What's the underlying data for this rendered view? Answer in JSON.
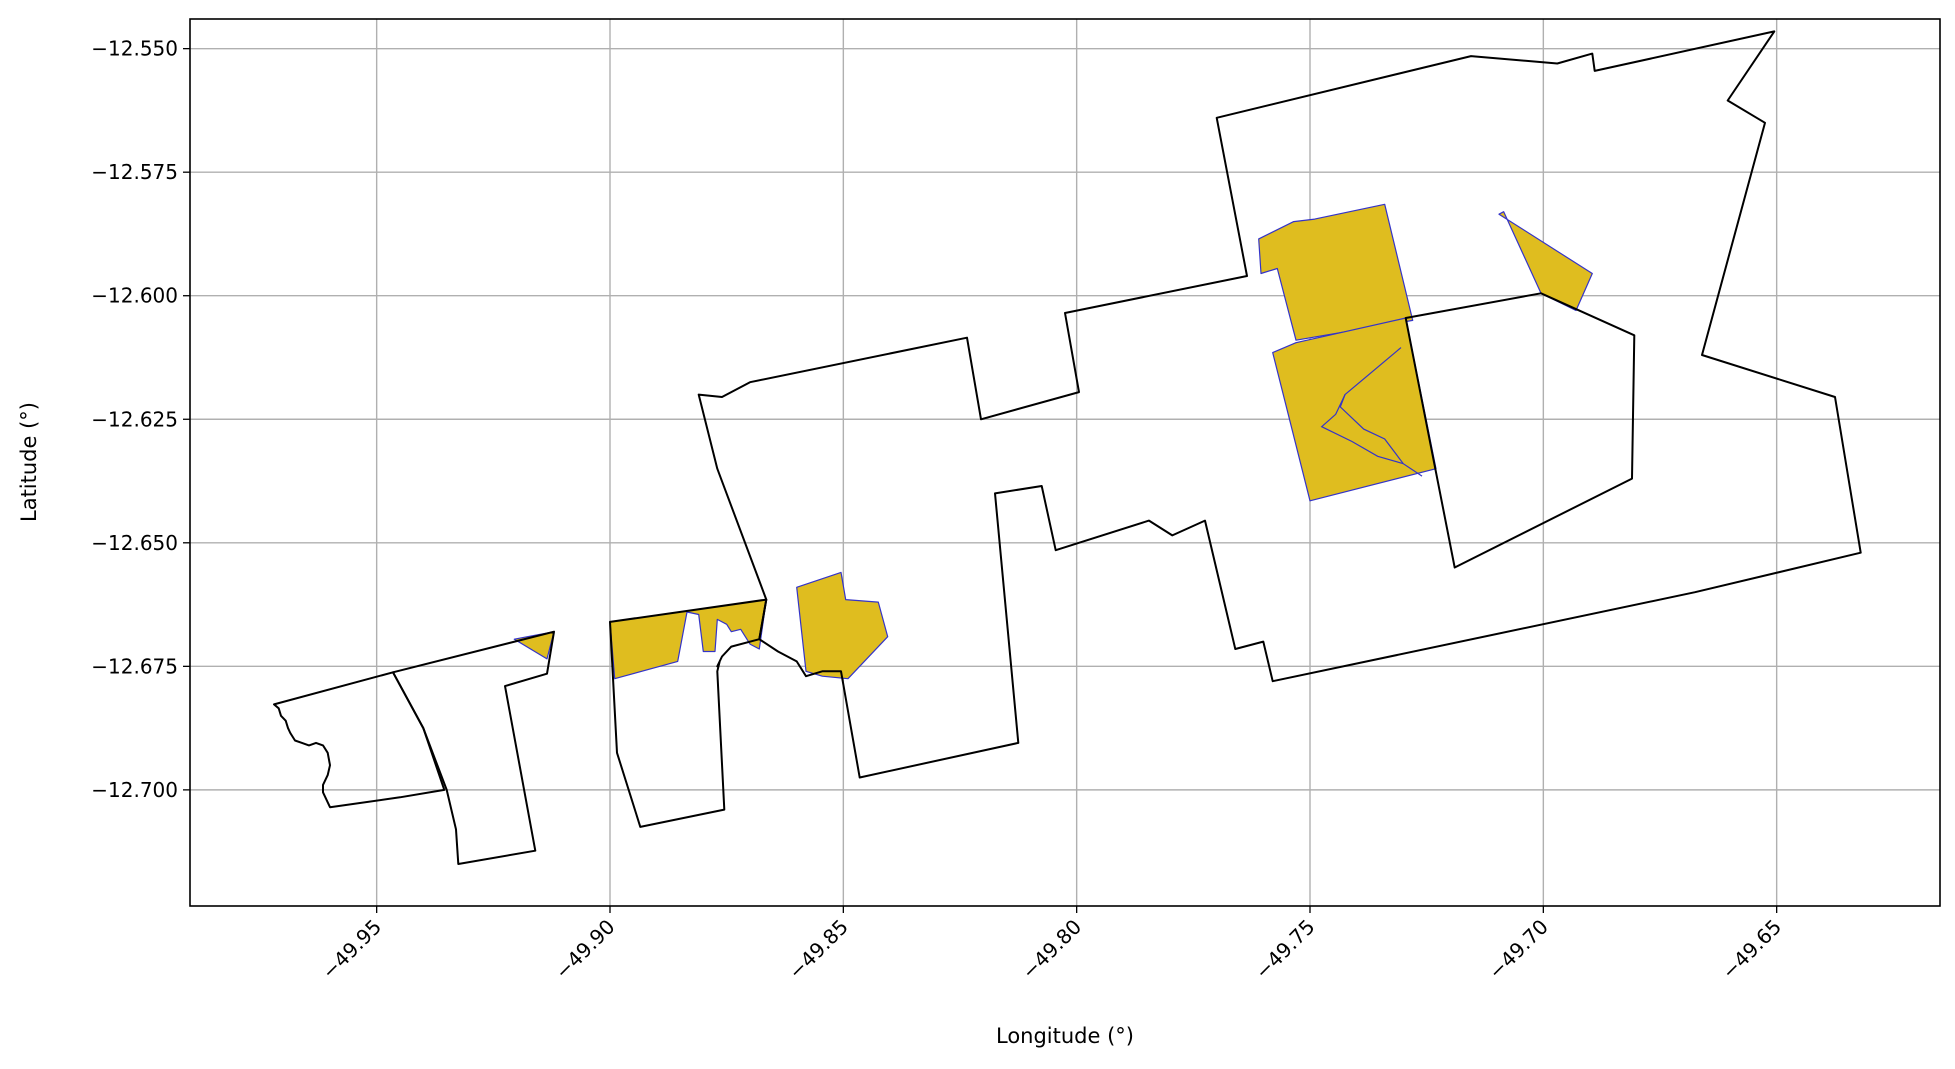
{
  "map": {
    "xlabel": "Longitude (°)",
    "ylabel": "Latitude (°)",
    "xlim": [
      -49.99,
      -49.615
    ],
    "ylim": [
      -12.7235,
      -12.544
    ],
    "x_ticks": [
      {
        "value": -49.95,
        "label": "−49.95"
      },
      {
        "value": -49.9,
        "label": "−49.90"
      },
      {
        "value": -49.85,
        "label": "−49.85"
      },
      {
        "value": -49.8,
        "label": "−49.80"
      },
      {
        "value": -49.75,
        "label": "−49.75"
      },
      {
        "value": -49.7,
        "label": "−49.70"
      },
      {
        "value": -49.65,
        "label": "−49.65"
      }
    ],
    "y_ticks": [
      {
        "value": -12.55,
        "label": "−12.550"
      },
      {
        "value": -12.575,
        "label": "−12.575"
      },
      {
        "value": -12.6,
        "label": "−12.600"
      },
      {
        "value": -12.625,
        "label": "−12.625"
      },
      {
        "value": -12.65,
        "label": "−12.650"
      },
      {
        "value": -12.675,
        "label": "−12.675"
      },
      {
        "value": -12.7,
        "label": "−12.700"
      }
    ],
    "grid": true,
    "colors": {
      "highlight_fill": "#dfbd1f",
      "highlight_edge": "#3434c8",
      "outline": "#000000",
      "grid": "#b0b0b0"
    },
    "outlines": [
      {
        "name": "outline-west",
        "points": [
          [
            -49.972,
            -12.6827
          ],
          [
            -49.971,
            -12.6835
          ],
          [
            -49.9705,
            -12.685
          ],
          [
            -49.9695,
            -12.686
          ],
          [
            -49.969,
            -12.6875
          ],
          [
            -49.9685,
            -12.6885
          ],
          [
            -49.9675,
            -12.69
          ],
          [
            -49.966,
            -12.6905
          ],
          [
            -49.9645,
            -12.691
          ],
          [
            -49.963,
            -12.6905
          ],
          [
            -49.9615,
            -12.691
          ],
          [
            -49.9605,
            -12.6925
          ],
          [
            -49.96,
            -12.695
          ],
          [
            -49.9605,
            -12.697
          ],
          [
            -49.9615,
            -12.699
          ],
          [
            -49.9615,
            -12.7005
          ],
          [
            -49.96,
            -12.7035
          ],
          [
            -49.945,
            -12.7015
          ],
          [
            -49.9355,
            -12.7
          ],
          [
            -49.94,
            -12.6875
          ],
          [
            -49.9465,
            -12.6762
          ],
          [
            -49.972,
            -12.6827
          ]
        ]
      },
      {
        "name": "outline-narrow-strip",
        "points": [
          [
            -49.9465,
            -12.6762
          ],
          [
            -49.912,
            -12.668
          ],
          [
            -49.9135,
            -12.6765
          ],
          [
            -49.9225,
            -12.679
          ],
          [
            -49.916,
            -12.7123
          ],
          [
            -49.9325,
            -12.715
          ],
          [
            -49.933,
            -12.708
          ],
          [
            -49.935,
            -12.7
          ],
          [
            -49.94,
            -12.6875
          ],
          [
            -49.9465,
            -12.6762
          ]
        ]
      },
      {
        "name": "outline-southwest-middle",
        "points": [
          [
            -49.9,
            -12.666
          ],
          [
            -49.8665,
            -12.6615
          ],
          [
            -49.868,
            -12.6695
          ],
          [
            -49.874,
            -12.671
          ],
          [
            -49.876,
            -12.673
          ],
          [
            -49.877,
            -12.675
          ],
          [
            -49.8765,
            -12.674
          ],
          [
            -49.877,
            -12.676
          ],
          [
            -49.8755,
            -12.704
          ],
          [
            -49.8935,
            -12.7075
          ],
          [
            -49.8985,
            -12.6925
          ],
          [
            -49.9,
            -12.666
          ]
        ]
      },
      {
        "name": "outline-central",
        "points": [
          [
            -49.8665,
            -12.6615
          ],
          [
            -49.877,
            -12.635
          ],
          [
            -49.881,
            -12.62
          ],
          [
            -49.876,
            -12.6205
          ],
          [
            -49.873,
            -12.619
          ],
          [
            -49.87,
            -12.6175
          ],
          [
            -49.8235,
            -12.6085
          ],
          [
            -49.8205,
            -12.625
          ],
          [
            -49.7995,
            -12.6195
          ],
          [
            -49.8025,
            -12.6035
          ],
          [
            -49.7635,
            -12.596
          ],
          [
            -49.77,
            -12.564
          ],
          [
            -49.7155,
            -12.5515
          ],
          [
            -49.697,
            -12.553
          ],
          [
            -49.6895,
            -12.551
          ],
          [
            -49.689,
            -12.5545
          ],
          [
            -49.6505,
            -12.5465
          ],
          [
            -49.6605,
            -12.5605
          ],
          [
            -49.6525,
            -12.565
          ],
          [
            -49.666,
            -12.612
          ],
          [
            -49.6375,
            -12.6205
          ],
          [
            -49.632,
            -12.652
          ],
          [
            -49.6675,
            -12.66
          ],
          [
            -49.758,
            -12.678
          ],
          [
            -49.76,
            -12.67
          ],
          [
            -49.766,
            -12.6715
          ],
          [
            -49.7725,
            -12.6455
          ],
          [
            -49.7795,
            -12.6485
          ],
          [
            -49.7845,
            -12.6455
          ],
          [
            -49.8045,
            -12.6515
          ],
          [
            -49.8075,
            -12.6385
          ],
          [
            -49.8175,
            -12.64
          ],
          [
            -49.8125,
            -12.6905
          ],
          [
            -49.8465,
            -12.6975
          ],
          [
            -49.8505,
            -12.676
          ],
          [
            -49.8545,
            -12.676
          ],
          [
            -49.858,
            -12.677
          ],
          [
            -49.86,
            -12.674
          ],
          [
            -49.864,
            -12.672
          ],
          [
            -49.868,
            -12.6695
          ],
          [
            -49.8665,
            -12.6615
          ]
        ]
      },
      {
        "name": "outline-east-inner",
        "points": [
          [
            -49.7295,
            -12.6045
          ],
          [
            -49.7005,
            -12.5995
          ],
          [
            -49.6805,
            -12.608
          ],
          [
            -49.681,
            -12.637
          ],
          [
            -49.719,
            -12.655
          ],
          [
            -49.7295,
            -12.6045
          ]
        ]
      }
    ],
    "highlights": [
      {
        "name": "highlight-far-west",
        "points": [
          [
            -49.9205,
            -12.6695
          ],
          [
            -49.912,
            -12.668
          ],
          [
            -49.9135,
            -12.6735
          ],
          [
            -49.9175,
            -12.6712
          ],
          [
            -49.9205,
            -12.6695
          ]
        ]
      },
      {
        "name": "highlight-west-parcel",
        "points": [
          [
            -49.9,
            -12.666
          ],
          [
            -49.8665,
            -12.6615
          ],
          [
            -49.868,
            -12.6715
          ],
          [
            -49.87,
            -12.6705
          ],
          [
            -49.872,
            -12.6675
          ],
          [
            -49.874,
            -12.668
          ],
          [
            -49.875,
            -12.6665
          ],
          [
            -49.877,
            -12.6655
          ],
          [
            -49.8775,
            -12.672
          ],
          [
            -49.88,
            -12.672
          ],
          [
            -49.881,
            -12.6645
          ],
          [
            -49.8835,
            -12.664
          ],
          [
            -49.8855,
            -12.674
          ],
          [
            -49.899,
            -12.6775
          ],
          [
            -49.9,
            -12.666
          ]
        ]
      },
      {
        "name": "highlight-central-south",
        "points": [
          [
            -49.86,
            -12.659
          ],
          [
            -49.8505,
            -12.656
          ],
          [
            -49.8495,
            -12.6615
          ],
          [
            -49.8425,
            -12.662
          ],
          [
            -49.8405,
            -12.669
          ],
          [
            -49.849,
            -12.6775
          ],
          [
            -49.8545,
            -12.677
          ],
          [
            -49.858,
            -12.676
          ],
          [
            -49.86,
            -12.659
          ]
        ]
      },
      {
        "name": "highlight-northeast-north",
        "points": [
          [
            -49.761,
            -12.5885
          ],
          [
            -49.7535,
            -12.585
          ],
          [
            -49.749,
            -12.5845
          ],
          [
            -49.734,
            -12.5815
          ],
          [
            -49.728,
            -12.605
          ],
          [
            -49.753,
            -12.609
          ],
          [
            -49.757,
            -12.5945
          ],
          [
            -49.7605,
            -12.5955
          ],
          [
            -49.761,
            -12.5885
          ]
        ]
      },
      {
        "name": "highlight-northeast-south",
        "points": [
          [
            -49.7295,
            -12.6045
          ],
          [
            -49.753,
            -12.6095
          ],
          [
            -49.758,
            -12.6115
          ],
          [
            -49.75,
            -12.6415
          ],
          [
            -49.723,
            -12.635
          ],
          [
            -49.7295,
            -12.6045
          ]
        ]
      },
      {
        "name": "highlight-east-small",
        "points": [
          [
            -49.7005,
            -12.5995
          ],
          [
            -49.7085,
            -12.583
          ],
          [
            -49.7095,
            -12.5835
          ],
          [
            -49.6895,
            -12.5955
          ],
          [
            -49.693,
            -12.603
          ],
          [
            -49.7005,
            -12.5995
          ]
        ]
      }
    ],
    "inner_lines": [
      {
        "name": "inner-boundary-line-1",
        "points": [
          [
            -49.7305,
            -12.6105
          ],
          [
            -49.7425,
            -12.62
          ],
          [
            -49.7435,
            -12.6225
          ],
          [
            -49.7385,
            -12.627
          ],
          [
            -49.734,
            -12.629
          ],
          [
            -49.73,
            -12.634
          ],
          [
            -49.726,
            -12.6365
          ]
        ]
      },
      {
        "name": "inner-boundary-line-2",
        "points": [
          [
            -49.7425,
            -12.62
          ],
          [
            -49.7445,
            -12.624
          ],
          [
            -49.7475,
            -12.6265
          ],
          [
            -49.741,
            -12.6295
          ],
          [
            -49.7355,
            -12.6325
          ],
          [
            -49.73,
            -12.634
          ]
        ]
      }
    ]
  }
}
